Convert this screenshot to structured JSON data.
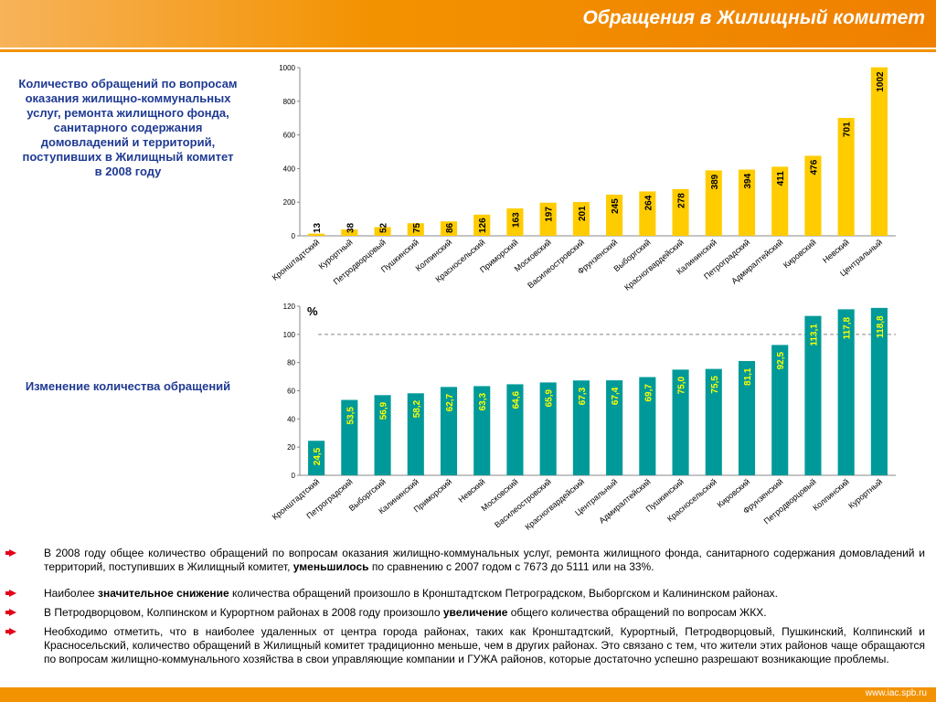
{
  "header": {
    "title": "Обращения в Жилищный комитет"
  },
  "captions": [
    "Количество обращений по вопросам оказания жилищно-коммунальных услуг, ремонта жилищного фонда, санитарного содержания домовладений и территорий, поступивших в Жилищный комитет в 2008 году",
    "Изменение количества обращений"
  ],
  "chart_data": [
    {
      "type": "bar",
      "color": "#FFCC00",
      "label_color": "#000000",
      "categories": [
        "Кронштадтский",
        "Курортный",
        "Петродворцовый",
        "Пушкинский",
        "Колпинский",
        "Красносельский",
        "Приморский",
        "Московский",
        "Василеостровский",
        "Фрунзенский",
        "Выборгский",
        "Красногвардейский",
        "Калининский",
        "Петроградский",
        "Адмиралтейский",
        "Кировский",
        "Невский",
        "Центральный"
      ],
      "values": [
        13,
        38,
        52,
        75,
        86,
        126,
        163,
        197,
        201,
        245,
        264,
        278,
        389,
        394,
        411,
        476,
        701,
        1002
      ],
      "ylim": [
        0,
        1000
      ],
      "yticks": [
        0,
        200,
        400,
        600,
        800,
        1000
      ]
    },
    {
      "type": "bar",
      "color": "#009999",
      "label_color": "#FFFF00",
      "annotation": "%",
      "reference_line": 100,
      "categories": [
        "Кронштадтский",
        "Петроградский",
        "Выборгский",
        "Калининский",
        "Приморский",
        "Невский",
        "Московский",
        "Василеостровский",
        "Красногвардейский",
        "Центральный",
        "Адмиралтейский",
        "Пушкинский",
        "Красносельский",
        "Кировский",
        "Фрунзенский",
        "Петродворцовый",
        "Колпинский",
        "Курортный"
      ],
      "values": [
        24.5,
        53.5,
        56.9,
        58.2,
        62.7,
        63.3,
        64.6,
        65.9,
        67.3,
        67.4,
        69.7,
        75.0,
        75.5,
        81.1,
        92.5,
        113.1,
        117.8,
        118.8
      ],
      "value_labels": [
        "24,5",
        "53,5",
        "56,9",
        "58,2",
        "62,7",
        "63,3",
        "64,6",
        "65,9",
        "67,3",
        "67,4",
        "69,7",
        "75,0",
        "75,5",
        "81,1",
        "92,5",
        "113,1",
        "117,8",
        "118,8"
      ],
      "ylim": [
        0,
        120
      ],
      "yticks": [
        0,
        20,
        40,
        60,
        80,
        100,
        120
      ]
    }
  ],
  "bullets": [
    [
      "В 2008 году общее количество обращений по вопросам оказания жилищно-коммунальных услуг, ремонта жилищного фонда, санитарного содержания домовладений и территорий, поступивших в Жилищный комитет, ",
      "уменьшилось",
      " по сравнению с 2007 годом с 7673 до 5111 или на 33%."
    ],
    [
      "Наиболее ",
      "значительное снижение",
      " количества обращений произошло в Кронштадтском  Петроградском, Выборгском и Калининском районах."
    ],
    [
      "В Петродворцовом, Колпинском и Курортном районах в 2008 году произошло ",
      "увеличение",
      " общего количества обращений по вопросам ЖКХ."
    ],
    [
      "Необходимо отметить, что в наиболее удаленных от центра города районах, таких как Кронштадтский, Курортный, Петродворцовый, Пушкинский, Колпинский и Красносельский, количество обращений в Жилищный комитет традиционно меньше, чем в других районах. Это связано с тем, что жители этих районов чаще обращаются по вопросам  жилищно-коммунального хозяйства в свои управляющие компании и ГУЖА районов, которые достаточно успешно разрешают возникающие проблемы."
    ]
  ],
  "footer": "www.iac.spb.ru"
}
